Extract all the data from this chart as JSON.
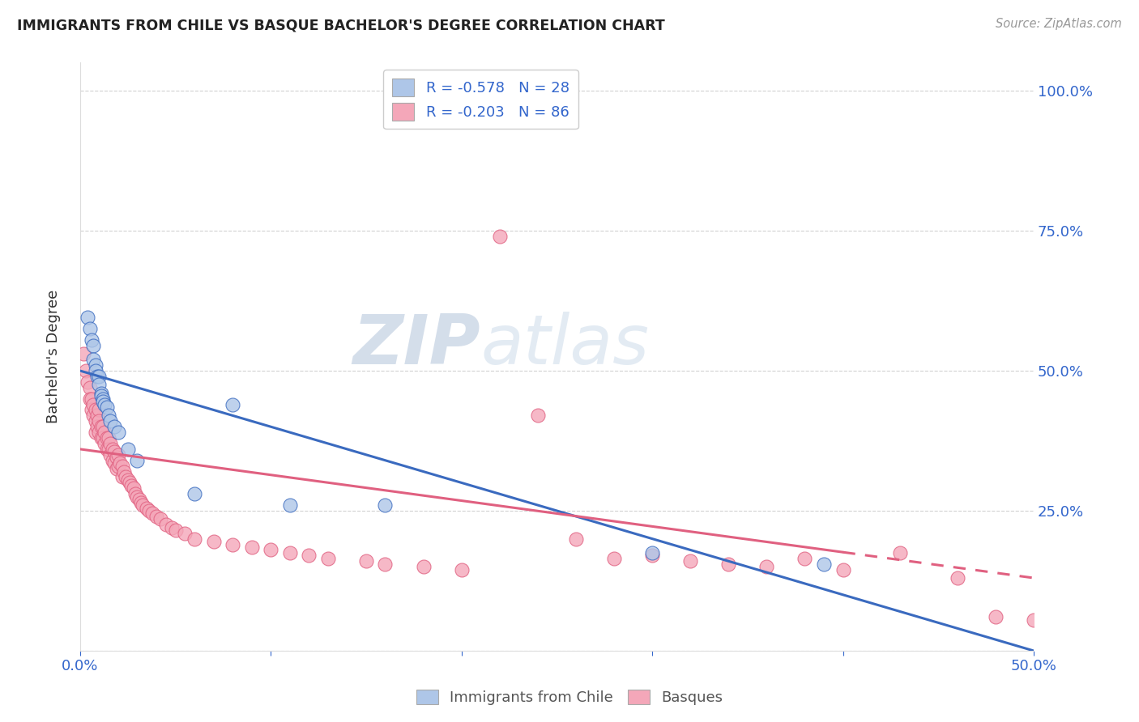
{
  "title": "IMMIGRANTS FROM CHILE VS BASQUE BACHELOR'S DEGREE CORRELATION CHART",
  "source": "Source: ZipAtlas.com",
  "ylabel": "Bachelor's Degree",
  "xlim": [
    0.0,
    0.5
  ],
  "ylim": [
    0.0,
    1.05
  ],
  "xticks": [
    0.0,
    0.1,
    0.2,
    0.3,
    0.4,
    0.5
  ],
  "xticklabels": [
    "0.0%",
    "",
    "",
    "",
    "",
    "50.0%"
  ],
  "yticks_right": [
    0.0,
    0.25,
    0.5,
    0.75,
    1.0
  ],
  "yticklabels_right": [
    "",
    "25.0%",
    "50.0%",
    "75.0%",
    "100.0%"
  ],
  "legend_r1": "R = -0.578",
  "legend_n1": "N = 28",
  "legend_r2": "R = -0.203",
  "legend_n2": "N = 86",
  "color_blue": "#aec6e8",
  "color_pink": "#f4a7b9",
  "line_color_blue": "#3a6abf",
  "line_color_pink": "#e06080",
  "watermark_zip": "ZIP",
  "watermark_atlas": "atlas",
  "grid_color": "#cccccc",
  "blue_scatter_x": [
    0.004,
    0.005,
    0.006,
    0.007,
    0.007,
    0.008,
    0.008,
    0.009,
    0.01,
    0.01,
    0.011,
    0.011,
    0.012,
    0.012,
    0.013,
    0.014,
    0.015,
    0.016,
    0.018,
    0.02,
    0.025,
    0.03,
    0.06,
    0.08,
    0.11,
    0.16,
    0.3,
    0.39
  ],
  "blue_scatter_y": [
    0.595,
    0.575,
    0.555,
    0.545,
    0.52,
    0.51,
    0.5,
    0.49,
    0.49,
    0.475,
    0.46,
    0.455,
    0.45,
    0.445,
    0.44,
    0.435,
    0.42,
    0.41,
    0.4,
    0.39,
    0.36,
    0.34,
    0.28,
    0.44,
    0.26,
    0.26,
    0.175,
    0.155
  ],
  "pink_scatter_x": [
    0.002,
    0.003,
    0.004,
    0.005,
    0.005,
    0.006,
    0.006,
    0.007,
    0.007,
    0.008,
    0.008,
    0.008,
    0.009,
    0.009,
    0.01,
    0.01,
    0.01,
    0.011,
    0.011,
    0.012,
    0.012,
    0.013,
    0.013,
    0.014,
    0.014,
    0.015,
    0.015,
    0.016,
    0.016,
    0.017,
    0.017,
    0.018,
    0.018,
    0.019,
    0.019,
    0.02,
    0.02,
    0.021,
    0.022,
    0.022,
    0.023,
    0.024,
    0.025,
    0.026,
    0.027,
    0.028,
    0.029,
    0.03,
    0.031,
    0.032,
    0.033,
    0.035,
    0.036,
    0.038,
    0.04,
    0.042,
    0.045,
    0.048,
    0.05,
    0.055,
    0.06,
    0.07,
    0.08,
    0.09,
    0.1,
    0.11,
    0.12,
    0.13,
    0.15,
    0.16,
    0.18,
    0.2,
    0.22,
    0.24,
    0.26,
    0.28,
    0.3,
    0.32,
    0.34,
    0.36,
    0.38,
    0.4,
    0.43,
    0.46,
    0.48,
    0.5
  ],
  "pink_scatter_y": [
    0.53,
    0.5,
    0.48,
    0.47,
    0.45,
    0.45,
    0.43,
    0.44,
    0.42,
    0.43,
    0.41,
    0.39,
    0.42,
    0.4,
    0.43,
    0.41,
    0.39,
    0.4,
    0.38,
    0.4,
    0.38,
    0.39,
    0.37,
    0.38,
    0.36,
    0.38,
    0.36,
    0.37,
    0.35,
    0.36,
    0.34,
    0.355,
    0.335,
    0.345,
    0.325,
    0.35,
    0.33,
    0.335,
    0.33,
    0.31,
    0.32,
    0.31,
    0.305,
    0.3,
    0.295,
    0.29,
    0.28,
    0.275,
    0.27,
    0.265,
    0.26,
    0.255,
    0.25,
    0.245,
    0.24,
    0.235,
    0.225,
    0.22,
    0.215,
    0.21,
    0.2,
    0.195,
    0.19,
    0.185,
    0.18,
    0.175,
    0.17,
    0.165,
    0.16,
    0.155,
    0.15,
    0.145,
    0.74,
    0.42,
    0.2,
    0.165,
    0.17,
    0.16,
    0.155,
    0.15,
    0.165,
    0.145,
    0.175,
    0.13,
    0.06,
    0.055
  ],
  "blue_line_x0": 0.0,
  "blue_line_x1": 0.5,
  "blue_line_y0": 0.5,
  "blue_line_y1": 0.0,
  "pink_line_x0": 0.0,
  "pink_line_x1": 0.5,
  "pink_line_y0": 0.36,
  "pink_line_y1": 0.13
}
